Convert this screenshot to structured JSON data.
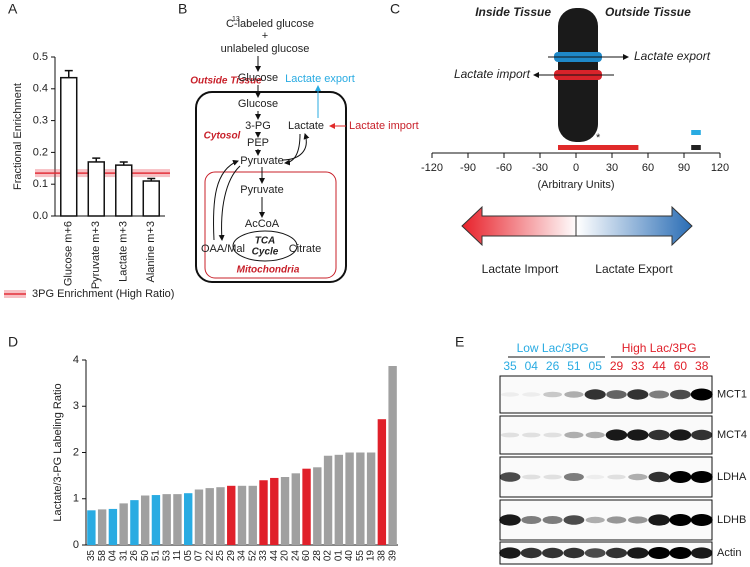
{
  "panel_labels": [
    "A",
    "B",
    "C",
    "D",
    "E"
  ],
  "chart_data": [
    {
      "type": "bar",
      "ylabel": "Fractional Enrichment",
      "categories": [
        "Glucose m+6",
        "Pyruvate m+3",
        "Lactate m+3",
        "Alanine m+3"
      ],
      "values": [
        0.435,
        0.17,
        0.16,
        0.11
      ],
      "errors": [
        0.022,
        0.012,
        0.01,
        0.008
      ],
      "color": "#ffffff",
      "edge": "#111111",
      "ylim": [
        0,
        0.5
      ],
      "yticks": [
        {
          "value": 0,
          "label": "0.0"
        },
        0.1,
        0.2,
        0.3,
        0.4,
        0.5
      ],
      "reference": {
        "name": "3PG Enrichment (High Ratio)",
        "value": 0.135,
        "color": "#e3303a"
      }
    },
    {
      "type": "interval",
      "xlabel": "(Arbitrary Units)",
      "xlim": [
        -120,
        120
      ],
      "xticks": [
        -120,
        -90,
        -60,
        -30,
        0,
        30,
        60,
        90,
        120
      ],
      "intervals": [
        {
          "start": -15,
          "end": 52,
          "color": "#e02a2a",
          "label": "*"
        },
        {
          "start": 96,
          "end": 104,
          "color": "#29abe2"
        },
        {
          "start": 96,
          "end": 104,
          "color": "#222222"
        }
      ],
      "headers": [
        "Inside Tissue",
        "Outside Tissue"
      ],
      "channels": [
        {
          "name": "Lactate export",
          "color": "#29abe2"
        },
        {
          "name": "Lactate import",
          "color": "#e02a2a"
        }
      ],
      "scale_labels": [
        "Lactate Import",
        "Lactate Export"
      ]
    },
    {
      "type": "bar",
      "ylabel": "Lactate/3-PG Labeling Ratio",
      "categories": [
        "35",
        "58",
        "04",
        "31",
        "26",
        "50",
        "51",
        "53",
        "11",
        "05",
        "07",
        "22",
        "25",
        "29",
        "34",
        "52",
        "33",
        "44",
        "20",
        "24",
        "60",
        "28",
        "02",
        "01",
        "40",
        "55",
        "19",
        "38",
        "39"
      ],
      "values": [
        0.75,
        0.77,
        0.78,
        0.9,
        0.97,
        1.07,
        1.08,
        1.1,
        1.1,
        1.12,
        1.2,
        1.23,
        1.25,
        1.28,
        1.28,
        1.28,
        1.4,
        1.45,
        1.47,
        1.55,
        1.65,
        1.68,
        1.93,
        1.95,
        2.0,
        2.0,
        2.0,
        2.72,
        3.87
      ],
      "colors": [
        "#29abe2",
        "#a0a0a0",
        "#29abe2",
        "#a0a0a0",
        "#29abe2",
        "#a0a0a0",
        "#29abe2",
        "#a0a0a0",
        "#a0a0a0",
        "#29abe2",
        "#a0a0a0",
        "#a0a0a0",
        "#a0a0a0",
        "#e0202a",
        "#a0a0a0",
        "#a0a0a0",
        "#e0202a",
        "#e0202a",
        "#a0a0a0",
        "#a0a0a0",
        "#e0202a",
        "#a0a0a0",
        "#a0a0a0",
        "#a0a0a0",
        "#a0a0a0",
        "#a0a0a0",
        "#a0a0a0",
        "#e0202a",
        "#a0a0a0"
      ],
      "ylim": [
        0,
        4
      ],
      "yticks": [
        0,
        1,
        2,
        3,
        4
      ]
    }
  ],
  "diagram": {
    "texts": [
      "13",
      "C-labeled glucose",
      "+",
      "unlabeled glucose",
      "Outside Tissue",
      "Glucose",
      "Lactate export",
      "Glucose",
      "3-PG",
      "Cytosol",
      "Lactate",
      "Lactate import",
      "PEP",
      "Pyruvate",
      "Pyruvate",
      "AcCoA",
      "TCA",
      "Cycle",
      "OAA/Mal",
      "Citrate",
      "Mitochondria"
    ]
  },
  "blot": {
    "groups": [
      {
        "name": "Low Lac/3PG",
        "color": "#29abe2",
        "samples": [
          "35",
          "04",
          "26",
          "51",
          "05"
        ]
      },
      {
        "name": "High Lac/3PG",
        "color": "#e0202a",
        "samples": [
          "29",
          "33",
          "44",
          "60",
          "38"
        ]
      }
    ],
    "rows": [
      {
        "name": "MCT1",
        "intensity": [
          0.05,
          0.05,
          0.2,
          0.3,
          0.8,
          0.6,
          0.8,
          0.5,
          0.7,
          1
        ]
      },
      {
        "name": "MCT4",
        "intensity": [
          0.1,
          0.1,
          0.1,
          0.3,
          0.3,
          0.9,
          0.9,
          0.8,
          0.9,
          0.8
        ]
      },
      {
        "name": "LDHA",
        "intensity": [
          0.7,
          0.1,
          0.1,
          0.5,
          0.05,
          0.1,
          0.3,
          0.8,
          1,
          1
        ]
      },
      {
        "name": "LDHB",
        "intensity": [
          0.9,
          0.5,
          0.5,
          0.7,
          0.3,
          0.4,
          0.4,
          0.9,
          1,
          1
        ]
      },
      {
        "name": "Actin",
        "intensity": [
          0.9,
          0.8,
          0.8,
          0.8,
          0.7,
          0.8,
          0.9,
          1,
          1,
          0.9
        ]
      }
    ]
  }
}
